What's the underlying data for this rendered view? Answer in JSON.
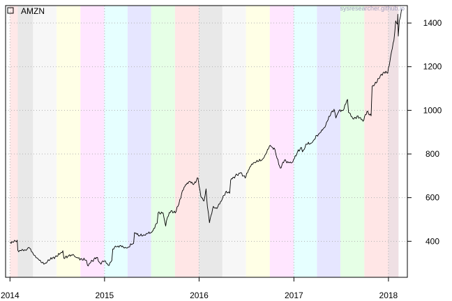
{
  "watermark": "sysresearcher.github.io",
  "chart_data": {
    "type": "line",
    "title": "",
    "xlabel": "",
    "ylabel": "",
    "legend": {
      "position": "top-left",
      "entries": [
        "AMZN"
      ]
    },
    "grid": true,
    "xlim": [
      "2013-12-15",
      "2018-03-15"
    ],
    "ylim": [
      235,
      1480
    ],
    "x_ticks": [
      {
        "date": "2014-01-01",
        "label": "2014"
      },
      {
        "date": "2015-01-01",
        "label": "2015"
      },
      {
        "date": "2016-01-01",
        "label": "2016"
      },
      {
        "date": "2017-01-01",
        "label": "2017"
      },
      {
        "date": "2018-01-01",
        "label": "2018"
      }
    ],
    "y_ticks": [
      400,
      600,
      800,
      1000,
      1200,
      1400
    ],
    "background_bands": [
      {
        "start": "2014-01-01",
        "end": "2014-01-31",
        "color": "#ffe8e8"
      },
      {
        "start": "2014-01-31",
        "end": "2014-03-31",
        "color": "#e8e8e8"
      },
      {
        "start": "2014-03-31",
        "end": "2014-06-30",
        "color": "#f7f7f7"
      },
      {
        "start": "2014-06-30",
        "end": "2014-09-30",
        "color": "#ffffe6"
      },
      {
        "start": "2014-09-30",
        "end": "2014-12-31",
        "color": "#ffe6ff"
      },
      {
        "start": "2014-12-31",
        "end": "2015-03-31",
        "color": "#e6ffff"
      },
      {
        "start": "2015-03-31",
        "end": "2015-06-30",
        "color": "#e6e6ff"
      },
      {
        "start": "2015-06-30",
        "end": "2015-09-30",
        "color": "#e6ffe6"
      },
      {
        "start": "2015-09-30",
        "end": "2015-12-31",
        "color": "#ffe6e6"
      },
      {
        "start": "2015-12-31",
        "end": "2016-03-31",
        "color": "#e8e8e8"
      },
      {
        "start": "2016-03-31",
        "end": "2016-06-30",
        "color": "#f7f7f7"
      },
      {
        "start": "2016-06-30",
        "end": "2016-09-30",
        "color": "#ffffe6"
      },
      {
        "start": "2016-09-30",
        "end": "2016-12-31",
        "color": "#ffe6ff"
      },
      {
        "start": "2016-12-31",
        "end": "2017-03-31",
        "color": "#e6ffff"
      },
      {
        "start": "2017-03-31",
        "end": "2017-06-30",
        "color": "#e6e6ff"
      },
      {
        "start": "2017-06-30",
        "end": "2017-09-30",
        "color": "#e6ffe6"
      },
      {
        "start": "2017-09-30",
        "end": "2017-12-31",
        "color": "#ffe6e6"
      },
      {
        "start": "2017-12-31",
        "end": "2018-02-09",
        "color": "#efe0e4"
      }
    ],
    "series": [
      {
        "name": "AMZN",
        "color": "#000000",
        "points": [
          [
            "2014-01-02",
            397
          ],
          [
            "2014-01-15",
            396
          ],
          [
            "2014-01-29",
            405
          ],
          [
            "2014-01-31",
            359
          ],
          [
            "2014-02-14",
            357
          ],
          [
            "2014-03-01",
            360
          ],
          [
            "2014-03-15",
            372
          ],
          [
            "2014-04-01",
            342
          ],
          [
            "2014-04-15",
            324
          ],
          [
            "2014-05-01",
            304
          ],
          [
            "2014-05-15",
            297
          ],
          [
            "2014-06-01",
            312
          ],
          [
            "2014-06-15",
            325
          ],
          [
            "2014-07-01",
            330
          ],
          [
            "2014-07-24",
            357
          ],
          [
            "2014-07-28",
            322
          ],
          [
            "2014-08-15",
            333
          ],
          [
            "2014-09-01",
            340
          ],
          [
            "2014-09-15",
            325
          ],
          [
            "2014-10-01",
            320
          ],
          [
            "2014-10-23",
            313
          ],
          [
            "2014-10-27",
            290
          ],
          [
            "2014-11-15",
            310
          ],
          [
            "2014-12-01",
            326
          ],
          [
            "2014-12-15",
            300
          ],
          [
            "2015-01-01",
            310
          ],
          [
            "2015-01-15",
            290
          ],
          [
            "2015-01-29",
            312
          ],
          [
            "2015-02-02",
            365
          ],
          [
            "2015-02-15",
            375
          ],
          [
            "2015-03-01",
            380
          ],
          [
            "2015-03-15",
            372
          ],
          [
            "2015-04-01",
            372
          ],
          [
            "2015-04-15",
            385
          ],
          [
            "2015-04-23",
            390
          ],
          [
            "2015-04-27",
            440
          ],
          [
            "2015-05-15",
            425
          ],
          [
            "2015-06-01",
            430
          ],
          [
            "2015-06-15",
            435
          ],
          [
            "2015-07-01",
            440
          ],
          [
            "2015-07-23",
            483
          ],
          [
            "2015-07-27",
            530
          ],
          [
            "2015-08-15",
            530
          ],
          [
            "2015-08-25",
            470
          ],
          [
            "2015-09-01",
            510
          ],
          [
            "2015-09-15",
            540
          ],
          [
            "2015-10-01",
            530
          ],
          [
            "2015-10-15",
            570
          ],
          [
            "2015-10-26",
            620
          ],
          [
            "2015-11-10",
            660
          ],
          [
            "2015-11-25",
            675
          ],
          [
            "2015-12-10",
            660
          ],
          [
            "2015-12-28",
            690
          ],
          [
            "2016-01-08",
            605
          ],
          [
            "2016-01-20",
            585
          ],
          [
            "2016-01-28",
            640
          ],
          [
            "2016-02-02",
            560
          ],
          [
            "2016-02-10",
            485
          ],
          [
            "2016-02-25",
            560
          ],
          [
            "2016-03-10",
            550
          ],
          [
            "2016-03-31",
            595
          ],
          [
            "2016-04-15",
            630
          ],
          [
            "2016-04-28",
            620
          ],
          [
            "2016-05-02",
            680
          ],
          [
            "2016-05-20",
            700
          ],
          [
            "2016-06-10",
            715
          ],
          [
            "2016-06-27",
            690
          ],
          [
            "2016-07-15",
            740
          ],
          [
            "2016-07-29",
            760
          ],
          [
            "2016-08-15",
            765
          ],
          [
            "2016-09-01",
            775
          ],
          [
            "2016-09-15",
            800
          ],
          [
            "2016-10-01",
            840
          ],
          [
            "2016-10-20",
            820
          ],
          [
            "2016-10-28",
            780
          ],
          [
            "2016-11-10",
            735
          ],
          [
            "2016-11-25",
            770
          ],
          [
            "2016-12-15",
            760
          ],
          [
            "2016-12-28",
            765
          ],
          [
            "2017-01-15",
            810
          ],
          [
            "2017-01-30",
            830
          ],
          [
            "2017-02-03",
            810
          ],
          [
            "2017-02-20",
            845
          ],
          [
            "2017-03-10",
            850
          ],
          [
            "2017-03-31",
            885
          ],
          [
            "2017-04-15",
            900
          ],
          [
            "2017-04-28",
            920
          ],
          [
            "2017-05-10",
            950
          ],
          [
            "2017-05-25",
            990
          ],
          [
            "2017-06-05",
            1005
          ],
          [
            "2017-06-12",
            965
          ],
          [
            "2017-06-25",
            1000
          ],
          [
            "2017-07-10",
            1000
          ],
          [
            "2017-07-27",
            1050
          ],
          [
            "2017-07-31",
            990
          ],
          [
            "2017-08-20",
            960
          ],
          [
            "2017-09-05",
            975
          ],
          [
            "2017-09-25",
            950
          ],
          [
            "2017-10-10",
            995
          ],
          [
            "2017-10-26",
            975
          ],
          [
            "2017-10-30",
            1110
          ],
          [
            "2017-11-15",
            1125
          ],
          [
            "2017-12-01",
            1160
          ],
          [
            "2017-12-15",
            1175
          ],
          [
            "2017-12-29",
            1170
          ],
          [
            "2018-01-10",
            1250
          ],
          [
            "2018-01-22",
            1320
          ],
          [
            "2018-01-29",
            1410
          ],
          [
            "2018-02-01",
            1400
          ],
          [
            "2018-02-05",
            1395
          ],
          [
            "2018-02-06",
            1440
          ],
          [
            "2018-02-08",
            1340
          ],
          [
            "2018-02-12",
            1410
          ],
          [
            "2018-02-20",
            1460
          ],
          [
            "2018-02-23",
            1465
          ]
        ]
      }
    ]
  }
}
